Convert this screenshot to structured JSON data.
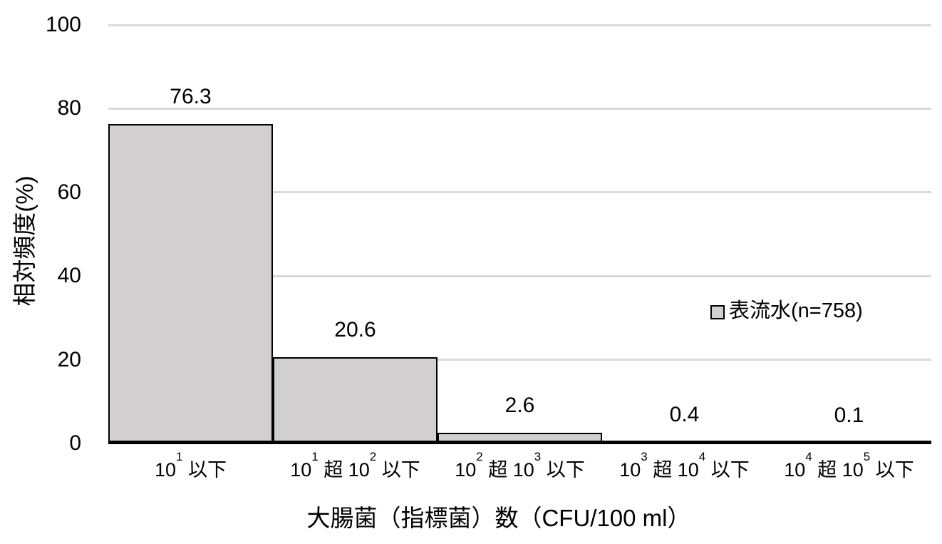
{
  "chart_data": {
    "type": "bar",
    "ylabel": "相対頻度(%)",
    "xlabel": "大腸菌（指標菌）数（CFU/100 ml）",
    "ylim": [
      0,
      100
    ],
    "yticks": [
      "0",
      "20",
      "40",
      "60",
      "80",
      "100"
    ],
    "ytick_values": [
      0,
      20,
      40,
      60,
      80,
      100
    ],
    "grid": true,
    "legend_position": "middle-right-inside-plot",
    "categories_text": [
      "10¹以下",
      "10¹超10²以下",
      "10²超10³以下",
      "10³超10⁴以下",
      "10⁴超10⁵以下"
    ],
    "categories": [
      {
        "segments": [
          {
            "t": "10"
          },
          {
            "sup": "1"
          },
          {
            "t": " 以下"
          }
        ]
      },
      {
        "segments": [
          {
            "t": "10"
          },
          {
            "sup": "1"
          },
          {
            "t": " 超 10"
          },
          {
            "sup": "2"
          },
          {
            "t": " 以下"
          }
        ]
      },
      {
        "segments": [
          {
            "t": "10"
          },
          {
            "sup": "2"
          },
          {
            "t": " 超 10"
          },
          {
            "sup": "3"
          },
          {
            "t": " 以下"
          }
        ]
      },
      {
        "segments": [
          {
            "t": "10"
          },
          {
            "sup": "3"
          },
          {
            "t": " 超 10"
          },
          {
            "sup": "4"
          },
          {
            "t": " 以下"
          }
        ]
      },
      {
        "segments": [
          {
            "t": "10"
          },
          {
            "sup": "4"
          },
          {
            "t": " 超 10"
          },
          {
            "sup": "5"
          },
          {
            "t": " 以下"
          }
        ]
      }
    ],
    "series": [
      {
        "name": "表流水(n=758)",
        "values": [
          76.3,
          20.6,
          2.6,
          0.4,
          0.1
        ],
        "value_labels": [
          "76.3",
          "20.6",
          "2.6",
          "0.4",
          "0.1"
        ]
      }
    ],
    "colors": {
      "bar_fill": "#d1cfcf",
      "bar_border": "#000000",
      "gridline": "#d9d9d9",
      "axis": "#000000",
      "text": "#000000",
      "background": "#ffffff"
    }
  }
}
